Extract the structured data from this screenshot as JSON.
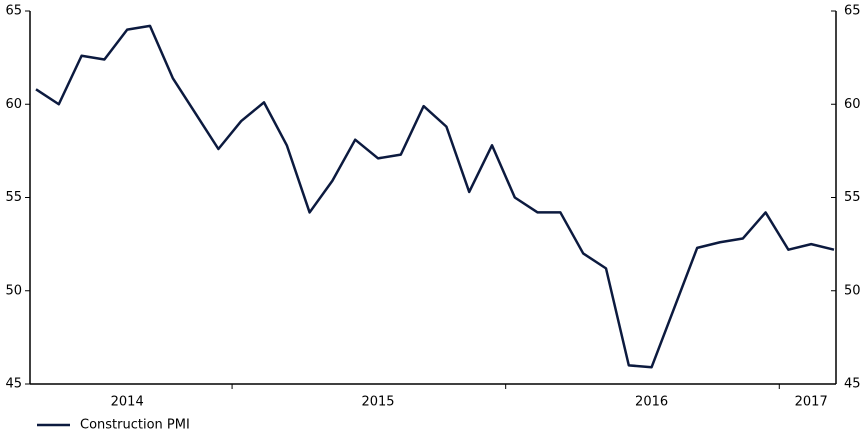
{
  "chart_data": {
    "type": "line",
    "categories": [
      null,
      null,
      null,
      null,
      "2014",
      null,
      null,
      null,
      null,
      null,
      null,
      null,
      null,
      null,
      null,
      "2015",
      null,
      null,
      null,
      null,
      null,
      null,
      null,
      null,
      null,
      null,
      null,
      "2016",
      null,
      null,
      null,
      null,
      null,
      null,
      "2017",
      null
    ],
    "series": [
      {
        "name": "Construction PMI",
        "color": "#0c1a3f",
        "values": [
          60.8,
          60.0,
          62.6,
          62.4,
          64.0,
          64.2,
          61.4,
          59.5,
          57.6,
          59.1,
          60.1,
          57.8,
          54.2,
          55.9,
          58.1,
          57.1,
          57.3,
          59.9,
          58.8,
          55.3,
          57.8,
          55.0,
          54.2,
          54.2,
          52.0,
          51.2,
          46.0,
          45.9,
          49.1,
          52.3,
          52.6,
          52.8,
          54.2,
          52.2,
          52.5,
          52.2
        ]
      }
    ],
    "ylim": [
      45,
      65
    ],
    "yticks": [
      45,
      50,
      55,
      60,
      65
    ],
    "y2lim": [
      45,
      65
    ],
    "y2ticks": [
      45,
      50,
      55,
      60,
      65
    ],
    "legend": "bottom-left"
  }
}
